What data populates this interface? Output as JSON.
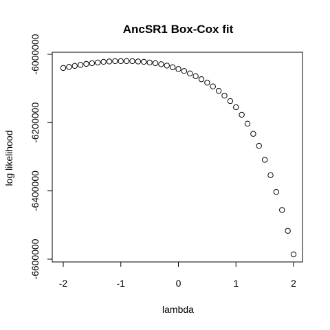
{
  "chart_data": {
    "type": "scatter",
    "title": "AncSR1 Box-Cox fit",
    "xlabel": "lambda",
    "ylabel": "log likelihood",
    "xlim": [
      -2.0,
      2.0
    ],
    "ylim": [
      -6600000,
      -6000000
    ],
    "x_ticks": [
      -2,
      -1,
      0,
      1,
      2
    ],
    "x_tick_labels": [
      "-2",
      "-1",
      "0",
      "1",
      "2"
    ],
    "y_ticks": [
      -6000000,
      -6200000,
      -6400000,
      -6600000
    ],
    "y_tick_labels": [
      "-6000000",
      "-6200000",
      "-6400000",
      "-6600000"
    ],
    "grid": false,
    "legend": "none",
    "marker": "open-circle",
    "x": [
      -2.0,
      -1.9,
      -1.8,
      -1.7,
      -1.6,
      -1.5,
      -1.4,
      -1.3,
      -1.2,
      -1.1,
      -1.0,
      -0.9,
      -0.8,
      -0.7,
      -0.6,
      -0.5,
      -0.4,
      -0.3,
      -0.2,
      -0.1,
      0.0,
      0.1,
      0.2,
      0.3,
      0.4,
      0.5,
      0.6,
      0.7,
      0.8,
      0.9,
      1.0,
      1.1,
      1.2,
      1.3,
      1.4,
      1.5,
      1.6,
      1.7,
      1.8,
      1.9,
      2.0
    ],
    "y": [
      -6040000,
      -6037000,
      -6034000,
      -6031000,
      -6028000,
      -6026000,
      -6024000,
      -6022000,
      -6021000,
      -6020000,
      -6020000,
      -6020000,
      -6020000,
      -6021000,
      -6022000,
      -6024000,
      -6026000,
      -6029000,
      -6033000,
      -6038000,
      -6043000,
      -6049000,
      -6056000,
      -6064000,
      -6073000,
      -6083000,
      -6094000,
      -6107000,
      -6121000,
      -6137000,
      -6155000,
      -6177000,
      -6203000,
      -6233000,
      -6268000,
      -6309000,
      -6354000,
      -6403000,
      -6456000,
      -6517000,
      -6586000
    ]
  }
}
